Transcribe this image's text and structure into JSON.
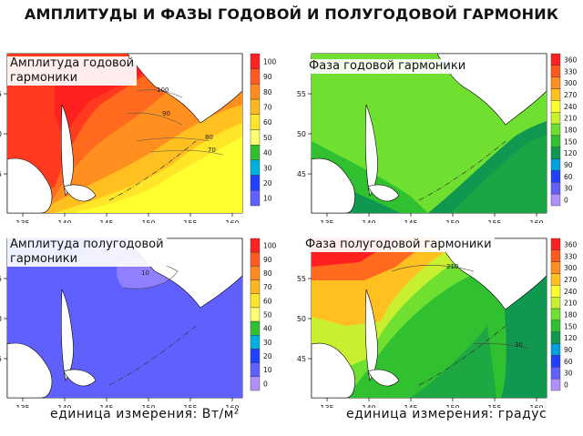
{
  "title": "АМПЛИТУДЫ И ФАЗЫ ГОДОВОЙ И ПОЛУГОДОВОЙ ГАРМОНИК",
  "panels": [
    {
      "id": "annual-amplitude",
      "title_lines": [
        "Амплитуда годовой",
        "гармоники"
      ],
      "colorbar_labels": [
        "100",
        "90",
        "80",
        "70",
        "60",
        "50",
        "40",
        "30",
        "20",
        "10"
      ],
      "colorbar_colors": [
        "#ff2020",
        "#ff5a1e",
        "#ff8a20",
        "#ffb820",
        "#ffe628",
        "#ffff70",
        "#30c030",
        "#00b0e0",
        "#2040ff",
        "#6060ff"
      ],
      "contour_labels": [
        "100",
        "90",
        "80",
        "70"
      ]
    },
    {
      "id": "annual-phase",
      "title_lines": [
        "Фаза годовой гармоники"
      ],
      "colorbar_labels": [
        "360",
        "330",
        "300",
        "270",
        "240",
        "210",
        "180",
        "150",
        "120",
        "90",
        "60",
        "30",
        "0"
      ],
      "colorbar_colors": [
        "#ff2020",
        "#ff5a1e",
        "#ff9020",
        "#ffc020",
        "#ffff30",
        "#c8f030",
        "#70e030",
        "#30c030",
        "#109850",
        "#00a0e0",
        "#2040ff",
        "#6060ff",
        "#b090ff"
      ],
      "contour_labels": []
    },
    {
      "id": "semiannual-amplitude",
      "title_lines": [
        "Амплитуда полугодовой",
        "гармоники"
      ],
      "colorbar_labels": [
        "100",
        "90",
        "80",
        "70",
        "60",
        "50",
        "40",
        "30",
        "20",
        "10",
        "0"
      ],
      "colorbar_colors": [
        "#ff2020",
        "#ff5a1e",
        "#ff8a20",
        "#ffb820",
        "#ffe628",
        "#ffff70",
        "#30c030",
        "#00b0e0",
        "#2040ff",
        "#6060ff",
        "#b090ff"
      ],
      "contour_labels": [
        "10"
      ]
    },
    {
      "id": "semiannual-phase",
      "title_lines": [
        "Фаза полугодовой гармоники"
      ],
      "colorbar_labels": [
        "360",
        "330",
        "300",
        "270",
        "240",
        "210",
        "180",
        "150",
        "120",
        "90",
        "60",
        "30",
        "0"
      ],
      "colorbar_colors": [
        "#ff2020",
        "#ff5a1e",
        "#ff9020",
        "#ffc020",
        "#ffff30",
        "#c8f030",
        "#70e030",
        "#30c030",
        "#109850",
        "#00a0e0",
        "#2040ff",
        "#6060ff",
        "#b090ff"
      ],
      "contour_labels": [
        "210",
        "30"
      ]
    }
  ],
  "axes": {
    "x_ticks": [
      "135",
      "140",
      "145",
      "150",
      "155",
      "160"
    ],
    "y_ticks": [
      "55",
      "50",
      "45"
    ]
  },
  "units_left": "единица измерения: Вт/м²",
  "units_right": "единица измерения: градус"
}
